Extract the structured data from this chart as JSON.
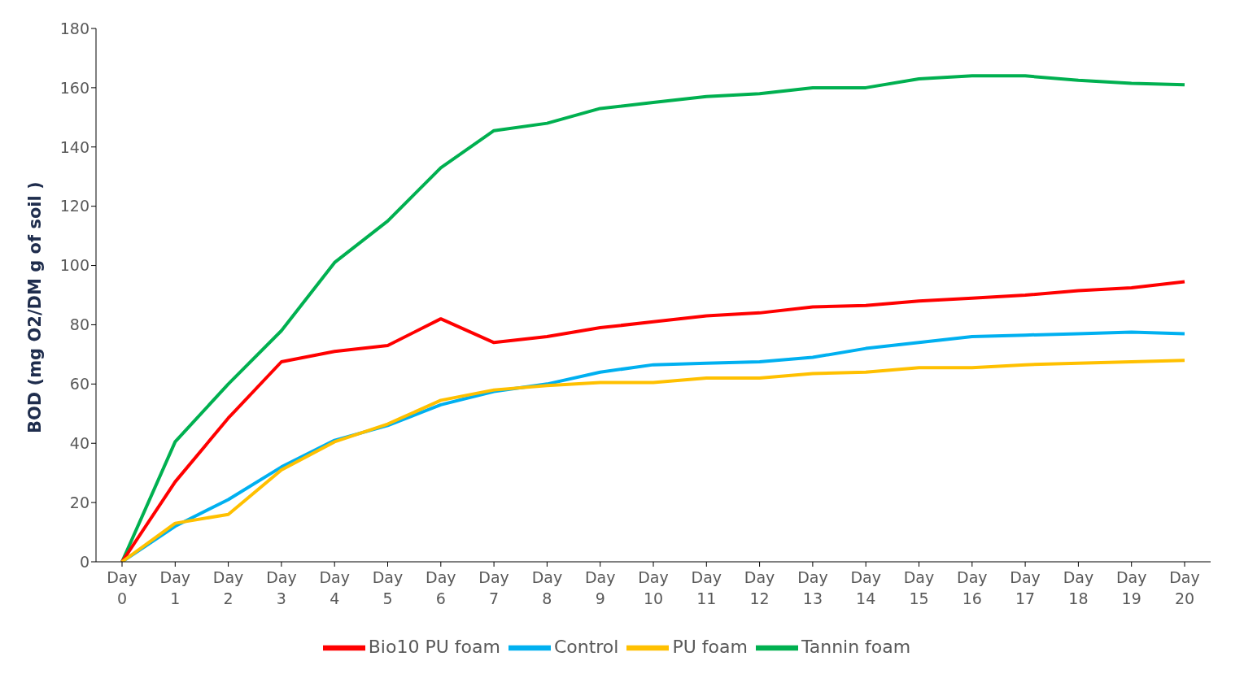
{
  "chart_data": {
    "type": "line",
    "ylabel": "BOD (mg O2/DM g of soil )",
    "categories": [
      "Day 0",
      "Day 1",
      "Day 2",
      "Day 3",
      "Day 4",
      "Day 5",
      "Day 6",
      "Day 7",
      "Day 8",
      "Day 9",
      "Day 10",
      "Day 11",
      "Day 12",
      "Day 13",
      "Day 14",
      "Day 15",
      "Day 16",
      "Day 17",
      "Day 18",
      "Day 19",
      "Day 20"
    ],
    "series": [
      {
        "name": "Control",
        "color": "#00b0f0",
        "values": [
          0,
          12,
          21,
          32,
          41,
          46,
          53,
          57.5,
          60,
          64,
          66.5,
          67,
          67.5,
          69,
          72,
          74,
          76,
          76.5,
          77,
          77.5,
          77
        ]
      },
      {
        "name": "Tannin foam",
        "color": "#00b050",
        "values": [
          0,
          40.5,
          60,
          78,
          101,
          115,
          133,
          145.5,
          148,
          153,
          155,
          157,
          158,
          160,
          160,
          163,
          164,
          164,
          162.5,
          161.5,
          161
        ]
      },
      {
        "name": "Bio10 PU foam",
        "color": "#ff0000",
        "values": [
          0,
          27,
          48.5,
          67.5,
          71,
          73,
          82,
          74,
          76,
          79,
          81,
          83,
          84,
          86,
          86.5,
          88,
          89,
          90,
          91.5,
          92.5,
          94.5
        ]
      },
      {
        "name": "PU foam",
        "color": "#ffc000",
        "values": [
          0,
          13,
          16,
          31,
          40.5,
          46.5,
          54.5,
          58,
          59.5,
          60.5,
          60.5,
          62,
          62,
          63.5,
          64,
          65.5,
          65.5,
          66.5,
          67,
          67.5,
          68
        ]
      }
    ],
    "ylim": [
      0,
      180
    ],
    "yticks": [
      0,
      20,
      40,
      60,
      80,
      100,
      120,
      140,
      160,
      180
    ],
    "grid": false,
    "legend": "bottom",
    "marker": "none",
    "line_style": "solid"
  }
}
